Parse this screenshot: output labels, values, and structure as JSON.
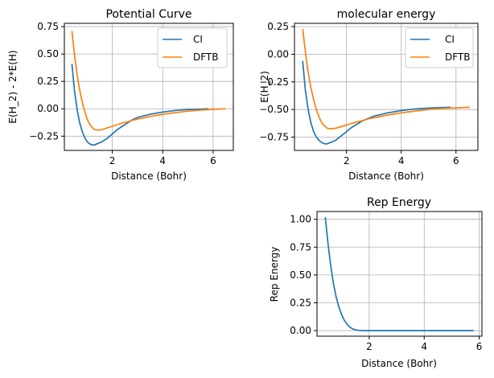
{
  "colors": {
    "ci": "#1f77b4",
    "dftb": "#ff7f0e",
    "grid": "#b0b0b0",
    "axes": "#000000"
  },
  "chart_data": [
    {
      "id": "potential",
      "type": "line",
      "title": "Potential Curve",
      "xlabel": "Distance (Bohr)",
      "ylabel": "E(H_2) - 2*E(H)",
      "xlim": [
        0.1,
        6.8
      ],
      "ylim": [
        -0.38,
        0.78
      ],
      "xticks": [
        2,
        4,
        6
      ],
      "yticks": [
        -0.25,
        0.0,
        0.25,
        0.5,
        0.75
      ],
      "ytick_labels": [
        "−0.25",
        "0.00",
        "0.25",
        "0.50",
        "0.75"
      ],
      "grid": true,
      "legend": "top-right",
      "series": [
        {
          "name": "CI",
          "color_key": "ci",
          "x": [
            0.4,
            0.5,
            0.6,
            0.7,
            0.8,
            0.9,
            1.0,
            1.1,
            1.2,
            1.3,
            1.4,
            1.6,
            1.8,
            2.0,
            2.2,
            2.4,
            2.6,
            2.8,
            3.0,
            3.5,
            4.0,
            4.5,
            5.0,
            5.5,
            5.8
          ],
          "y": [
            0.41,
            0.17,
            0.0,
            -0.12,
            -0.2,
            -0.26,
            -0.3,
            -0.32,
            -0.33,
            -0.33,
            -0.32,
            -0.3,
            -0.27,
            -0.23,
            -0.19,
            -0.16,
            -0.13,
            -0.1,
            -0.08,
            -0.05,
            -0.03,
            -0.015,
            -0.007,
            -0.003,
            0.0
          ]
        },
        {
          "name": "DFTB",
          "color_key": "dftb",
          "x": [
            0.4,
            0.5,
            0.6,
            0.7,
            0.8,
            0.9,
            1.0,
            1.1,
            1.2,
            1.3,
            1.4,
            1.6,
            1.8,
            2.0,
            2.2,
            2.4,
            2.6,
            2.8,
            3.0,
            3.5,
            4.0,
            4.5,
            5.0,
            5.5,
            6.0,
            6.5
          ],
          "y": [
            0.71,
            0.5,
            0.32,
            0.18,
            0.07,
            -0.02,
            -0.09,
            -0.14,
            -0.17,
            -0.19,
            -0.195,
            -0.19,
            -0.175,
            -0.16,
            -0.145,
            -0.13,
            -0.12,
            -0.105,
            -0.095,
            -0.07,
            -0.05,
            -0.035,
            -0.022,
            -0.012,
            -0.005,
            0.0
          ]
        }
      ]
    },
    {
      "id": "molecular",
      "type": "line",
      "title": "molecular energy",
      "xlabel": "Distance (Bohr)",
      "ylabel": "E(H_2)",
      "xlim": [
        0.1,
        6.8
      ],
      "ylim": [
        -0.87,
        0.28
      ],
      "xticks": [
        2,
        4,
        6
      ],
      "yticks": [
        -0.75,
        -0.5,
        -0.25,
        0.0,
        0.25
      ],
      "ytick_labels": [
        "−0.75",
        "−0.50",
        "−0.25",
        "0.00",
        "0.25"
      ],
      "grid": true,
      "legend": "top-right",
      "series": [
        {
          "name": "CI",
          "color_key": "ci",
          "x": [
            0.4,
            0.5,
            0.6,
            0.7,
            0.8,
            0.9,
            1.0,
            1.1,
            1.2,
            1.3,
            1.4,
            1.6,
            1.8,
            2.0,
            2.2,
            2.4,
            2.6,
            2.8,
            3.0,
            3.5,
            4.0,
            4.5,
            5.0,
            5.5,
            5.8
          ],
          "y": [
            -0.06,
            -0.33,
            -0.5,
            -0.62,
            -0.7,
            -0.75,
            -0.78,
            -0.8,
            -0.81,
            -0.81,
            -0.8,
            -0.78,
            -0.74,
            -0.7,
            -0.66,
            -0.63,
            -0.6,
            -0.58,
            -0.56,
            -0.53,
            -0.51,
            -0.495,
            -0.487,
            -0.482,
            -0.48
          ]
        },
        {
          "name": "DFTB",
          "color_key": "dftb",
          "x": [
            0.4,
            0.5,
            0.6,
            0.7,
            0.8,
            0.9,
            1.0,
            1.1,
            1.2,
            1.3,
            1.4,
            1.6,
            1.8,
            2.0,
            2.2,
            2.4,
            2.6,
            2.8,
            3.0,
            3.5,
            4.0,
            4.5,
            5.0,
            5.5,
            6.0,
            6.5
          ],
          "y": [
            0.23,
            0.02,
            -0.16,
            -0.3,
            -0.41,
            -0.5,
            -0.57,
            -0.62,
            -0.65,
            -0.67,
            -0.675,
            -0.67,
            -0.655,
            -0.64,
            -0.625,
            -0.61,
            -0.6,
            -0.585,
            -0.575,
            -0.55,
            -0.53,
            -0.515,
            -0.5,
            -0.49,
            -0.485,
            -0.48
          ]
        }
      ]
    },
    {
      "id": "rep",
      "type": "line",
      "title": "Rep Energy",
      "xlabel": "Distance (Bohr)",
      "ylabel": "Rep Energy",
      "xlim": [
        0.1,
        6.1
      ],
      "ylim": [
        -0.05,
        1.07
      ],
      "xticks": [
        2,
        4,
        6
      ],
      "yticks": [
        0.0,
        0.25,
        0.5,
        0.75,
        1.0
      ],
      "ytick_labels": [
        "0.00",
        "0.25",
        "0.50",
        "0.75",
        "1.00"
      ],
      "grid": true,
      "legend": "none",
      "series": [
        {
          "name": "",
          "color_key": "ci",
          "x": [
            0.4,
            0.5,
            0.6,
            0.7,
            0.8,
            0.9,
            1.0,
            1.1,
            1.2,
            1.3,
            1.4,
            1.5,
            1.6,
            1.7,
            1.8,
            2.0,
            2.5,
            3.0,
            4.0,
            5.0,
            5.8
          ],
          "y": [
            1.02,
            0.78,
            0.58,
            0.42,
            0.3,
            0.21,
            0.14,
            0.09,
            0.055,
            0.03,
            0.015,
            0.007,
            0.003,
            0.001,
            0.0,
            0.0,
            0.0,
            0.0,
            0.0,
            0.0,
            0.0
          ]
        }
      ]
    }
  ]
}
